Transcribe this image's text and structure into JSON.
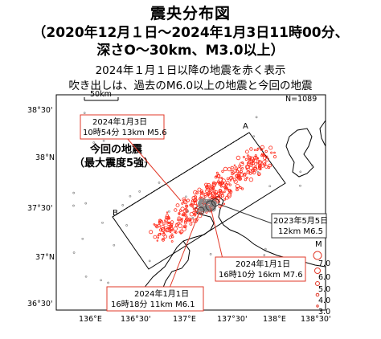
{
  "title": {
    "line1": "震央分布図",
    "line2": "（2020年12月１日～2024年1月3日11時00分、",
    "line3": "深さO～30km、M3.0以上）"
  },
  "subtitle": {
    "line1": "2024年１月１日以降の地震を赤く表示",
    "line2": "吹き出しは、過去のM6.0以上の地震と今回の地震"
  },
  "map": {
    "count_label": "N=1089",
    "scale_label": "50km",
    "lat_labels": [
      "38°30'",
      "38°N",
      "37°30'",
      "37°N",
      "36°30'"
    ],
    "lon_labels": [
      "136°E",
      "136°30'",
      "137°E",
      "137°30'",
      "138°E",
      "138°30'"
    ],
    "section_labels": [
      "A",
      "B"
    ],
    "current_label_line1": "今回の地震",
    "current_label_line2": "（最大震度5強）",
    "callouts": [
      {
        "line1": "2024年1月3日",
        "line2": "10時54分 13km M5.6"
      },
      {
        "line1": "2023年5月5日",
        "line2": "12km M6.5"
      },
      {
        "line1": "2024年1月1日",
        "line2": "16時10分 16km M7.6"
      },
      {
        "line1": "2024年1月1日",
        "line2": "16時18分 11km M6.1"
      }
    ],
    "legend": {
      "title": "M",
      "levels": [
        "7.0",
        "6.0",
        "5.0",
        "4.0",
        "3.0"
      ]
    },
    "colors": {
      "recent": "#ff2a1a",
      "past": "#888888",
      "callout_red": "#e23a2a"
    }
  }
}
